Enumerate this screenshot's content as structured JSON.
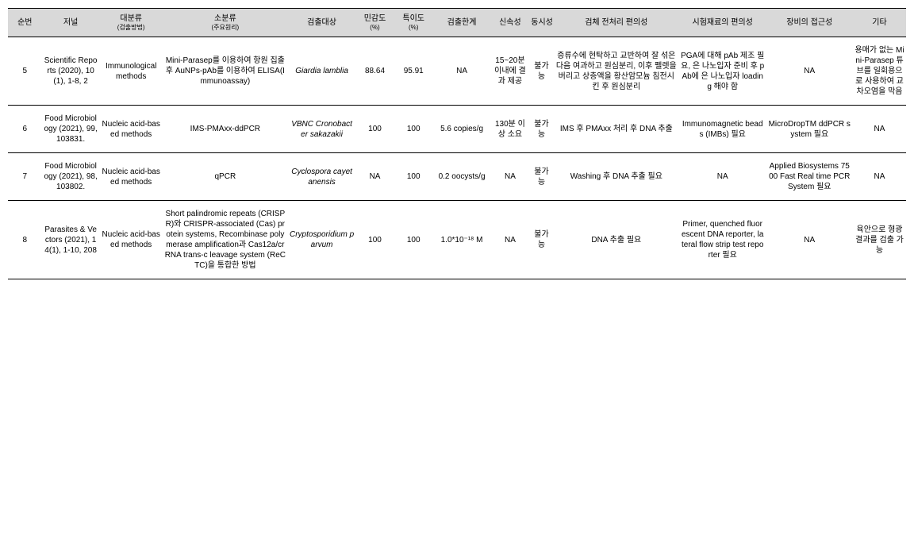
{
  "headers": {
    "h0": "순번",
    "h1": "저널",
    "h2": "대분류",
    "h2s": "(검출방법)",
    "h3": "소분류",
    "h3s": "(주요원리)",
    "h4": "검출대상",
    "h5": "민감도",
    "h5s": "(%)",
    "h6": "특이도",
    "h6s": "(%)",
    "h7": "검출한계",
    "h8": "신속성",
    "h9": "동시성",
    "h10": "검체 전처리 편의성",
    "h11": "시험재료의 편의성",
    "h12": "장비의 접근성",
    "h13": "기타"
  },
  "rows": [
    {
      "n": "5",
      "journal": "Scientific Reports (2020), 10(1), 1-8, 2",
      "major": "Immunological methods",
      "minor": "Mini-Parasep를 이용하여 항원 집출 후 AuNPs-pAb를 이용하여 ELISA(Immunoassay)",
      "target": "Giardia lamblia",
      "sens": "88.64",
      "spec": "95.91",
      "limit": "NA",
      "speed": "15~20분 이내에 결과 제공",
      "simul": "불가능",
      "prep": "증류수에 현탁하고 교반하여 잘 섞은 다음 여과하고 원심분리, 이후 펠렛을 버리고 상층액을 황산암모늄 침전시킨 후 원심분리",
      "material": "PGA에 대해 pAb 제조 필요, 은 나노입자 준비 후 pAb에 은 나노입자 loading 해야 함",
      "equip": "NA",
      "etc": "용매가 없는 Mini-Parasep 튜브를 일회용으로 사용하여 교차오염을 막음"
    },
    {
      "n": "6",
      "journal": "Food Microbiology (2021), 99, 103831.",
      "major": "Nucleic acid-based methods",
      "minor": "IMS-PMAxx-ddPCR",
      "target": "VBNC Cronobacter sakazakii",
      "sens": "100",
      "spec": "100",
      "limit": "5.6 copies/g",
      "speed": "130분 이상 소요",
      "simul": "불가능",
      "prep": "IMS 후 PMAxx 처리 후 DNA 추출",
      "material": "Immunomagnetic beads (IMBs) 필요",
      "equip": "MicroDropTM ddPCR system 필요",
      "etc": "NA"
    },
    {
      "n": "7",
      "journal": "Food Microbiology (2021), 98, 103802.",
      "major": "Nucleic acid-based methods",
      "minor": "qPCR",
      "target": "Cyclospora cayetanensis",
      "sens": "NA",
      "spec": "100",
      "limit": "0.2 oocysts/g",
      "speed": "NA",
      "simul": "불가능",
      "prep": "Washing 후 DNA 추출 필요",
      "material": "NA",
      "equip": "Applied Biosystems 7500 Fast Real time PCR System 필요",
      "etc": "NA"
    },
    {
      "n": "8",
      "journal": "Parasites & Vectors (2021), 14(1), 1-10, 208",
      "major": "Nucleic acid-based methods",
      "minor": "Short palindromic repeats (CRISPR)와 CRISPR-associated (Cas) protein systems, Recombinase polymerase amplification과 Cas12a/crRNA trans-c leavage system (ReCTC)을 통합한 방법",
      "target": "Cryptosporidium parvum",
      "sens": "100",
      "spec": "100",
      "limit": "1.0*10⁻¹⁸ M",
      "speed": "NA",
      "simul": "불가능",
      "prep": "DNA 추출 필요",
      "material": "Primer, quenched fluorescent DNA reporter, lateral flow strip test reporter 필요",
      "equip": "NA",
      "etc": "육안으로 형광결과를 검출 가능"
    }
  ]
}
